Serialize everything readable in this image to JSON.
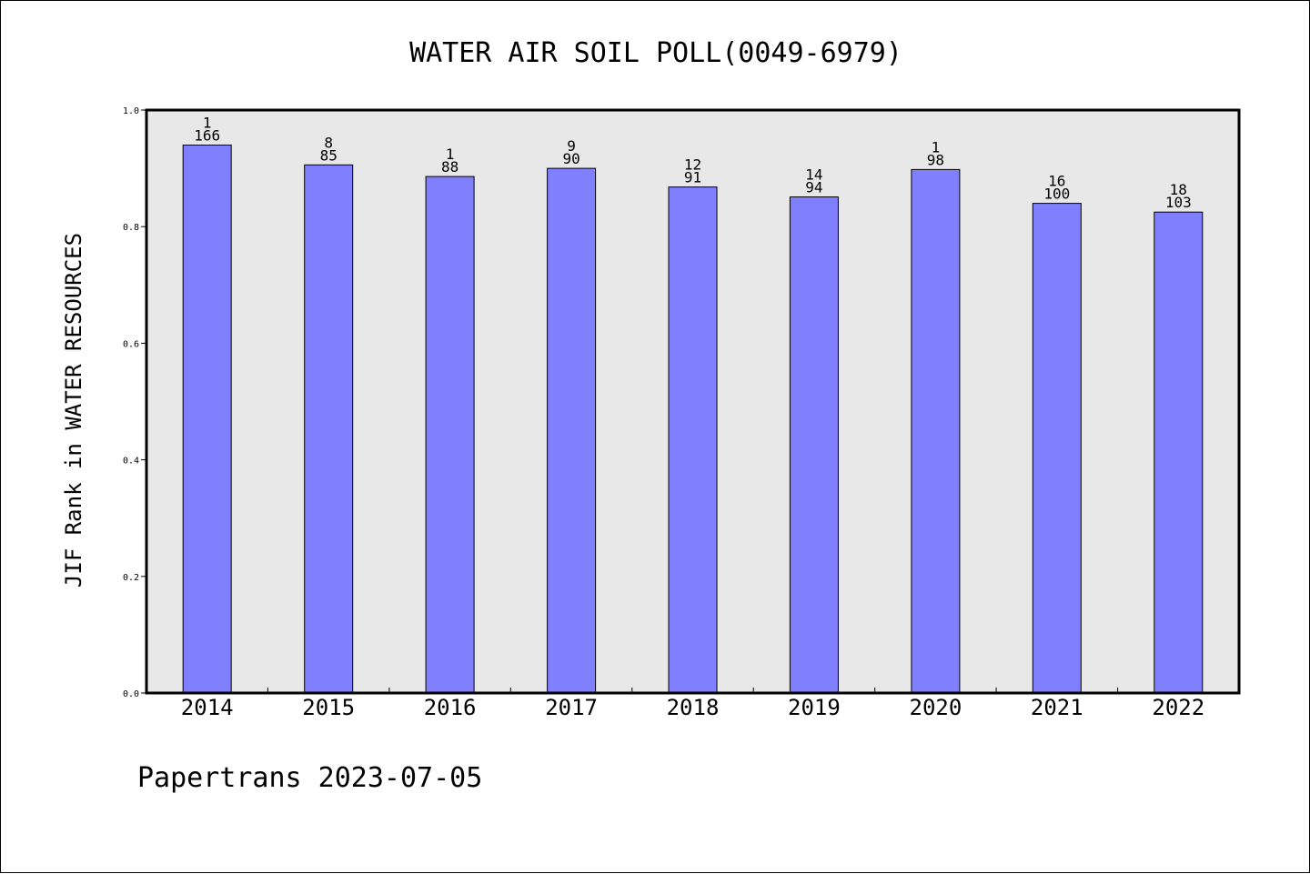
{
  "chart_data": {
    "type": "bar",
    "title": "WATER AIR SOIL POLL(0049-6979)",
    "ylabel": "JIF Rank in WATER RESOURCES",
    "xlabel": "",
    "ylim": [
      0,
      1.0
    ],
    "yticks": [
      "0.0",
      "0.2",
      "0.4",
      "0.6",
      "0.8",
      "1.0"
    ],
    "categories": [
      "2014",
      "2015",
      "2016",
      "2017",
      "2018",
      "2019",
      "2020",
      "2021",
      "2022"
    ],
    "values": [
      0.94,
      0.906,
      0.886,
      0.9,
      0.868,
      0.851,
      0.898,
      0.84,
      0.825
    ],
    "rank_labels": [
      "1",
      "8",
      "1",
      "9",
      "12",
      "14",
      "1",
      "16",
      "18"
    ],
    "total_labels": [
      "166",
      "85",
      "88",
      "90",
      "91",
      "94",
      "98",
      "100",
      "103"
    ],
    "grid": false,
    "legend": "none",
    "colors": {
      "bar_fill": "#8080ff",
      "bar_stroke": "#000000",
      "plot_background": "#e8e8e8",
      "plot_border": "#000000"
    }
  },
  "footer": {
    "text": "Papertrans 2023-07-05"
  }
}
